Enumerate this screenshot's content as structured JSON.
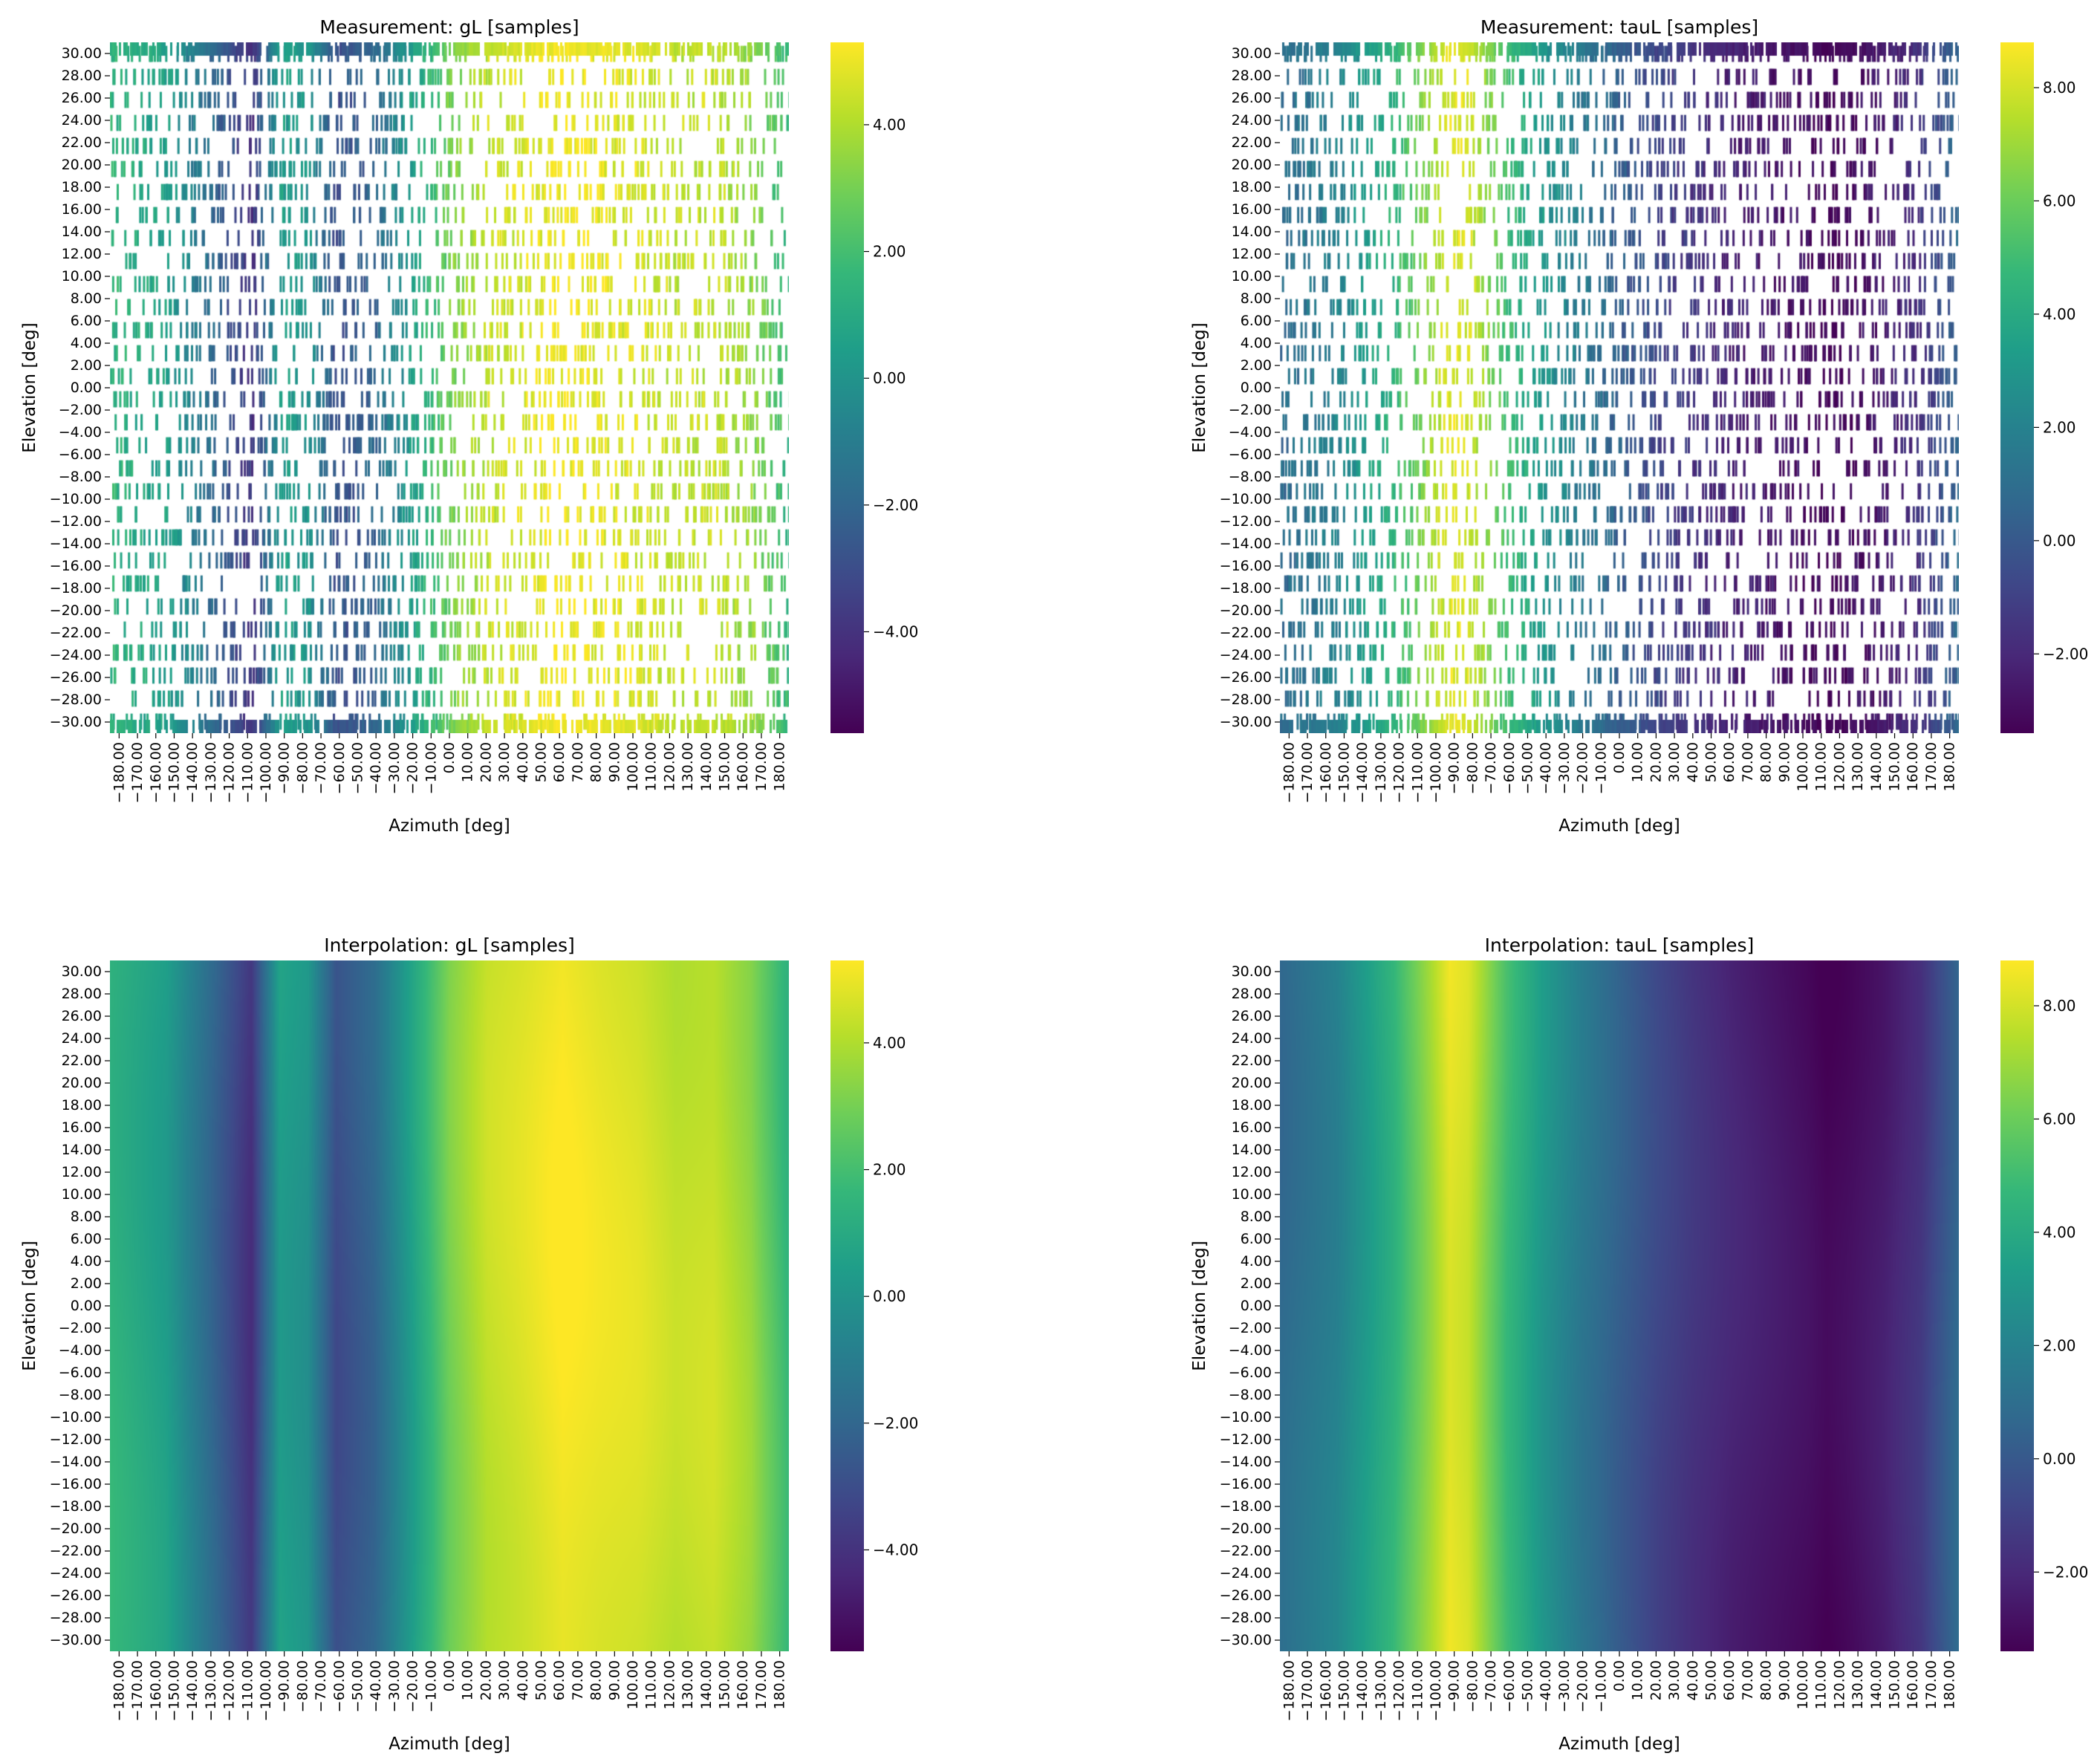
{
  "colors": {
    "colormap": "viridis",
    "viridis_stops": [
      "#440154",
      "#482878",
      "#3e4989",
      "#31688e",
      "#26828e",
      "#1f9e89",
      "#35b779",
      "#6ece58",
      "#b5de2b",
      "#fde725"
    ],
    "missing_cell": "#ffffff",
    "tick": "#000000"
  },
  "chart_data": [
    {
      "type": "heatmap",
      "title": "Measurement: gL [samples]",
      "xlabel": "Azimuth [deg]",
      "ylabel": "Elevation [deg]",
      "azimuth_range": [
        -180,
        180
      ],
      "elevation_range": [
        -30,
        30
      ],
      "xticks": [
        "−180.00",
        "−170.00",
        "−160.00",
        "−150.00",
        "−140.00",
        "−130.00",
        "−120.00",
        "−110.00",
        "−100.00",
        "−90.00",
        "−80.00",
        "−70.00",
        "−60.00",
        "−50.00",
        "−40.00",
        "−30.00",
        "−20.00",
        "−10.00",
        "0.00",
        "10.00",
        "20.00",
        "30.00",
        "40.00",
        "50.00",
        "60.00",
        "70.00",
        "80.00",
        "90.00",
        "100.00",
        "110.00",
        "120.00",
        "130.00",
        "140.00",
        "150.00",
        "160.00",
        "170.00",
        "180.00"
      ],
      "yticks": [
        "30.00",
        "28.00",
        "26.00",
        "24.00",
        "22.00",
        "20.00",
        "18.00",
        "16.00",
        "14.00",
        "12.00",
        "10.00",
        "8.00",
        "6.00",
        "4.00",
        "2.00",
        "0.00",
        "−2.00",
        "−4.00",
        "−6.00",
        "−8.00",
        "−10.00",
        "−12.00",
        "−14.00",
        "−16.00",
        "−18.00",
        "−20.00",
        "−22.00",
        "−24.00",
        "−26.00",
        "−28.00",
        "−30.00"
      ],
      "colorbar": {
        "range": [
          -5.6,
          5.3
        ],
        "ticks": [
          4,
          2,
          0,
          -2,
          -4
        ],
        "tick_labels": [
          "4.00",
          "2.00",
          "0.00",
          "−2.00",
          "−4.00"
        ]
      },
      "sparse": true,
      "value_profile": {
        "azimuth": [
          -180,
          -150,
          -120,
          -105,
          -90,
          -75,
          -60,
          -40,
          -20,
          0,
          20,
          40,
          60,
          80,
          100,
          120,
          140,
          160,
          180
        ],
        "values": [
          1.5,
          0.5,
          -2.5,
          -4.0,
          0.5,
          0.0,
          -3.0,
          -2.0,
          0.5,
          3.0,
          4.3,
          4.7,
          5.2,
          4.9,
          4.7,
          4.2,
          4.4,
          3.5,
          1.5
        ]
      }
    },
    {
      "type": "heatmap",
      "title": "Measurement: tauL [samples]",
      "xlabel": "Azimuth [deg]",
      "ylabel": "Elevation [deg]",
      "azimuth_range": [
        -180,
        180
      ],
      "elevation_range": [
        -30,
        30
      ],
      "xticks": [
        "−180.00",
        "−170.00",
        "−160.00",
        "−150.00",
        "−140.00",
        "−130.00",
        "−120.00",
        "−110.00",
        "−100.00",
        "−90.00",
        "−80.00",
        "−70.00",
        "−60.00",
        "−50.00",
        "−40.00",
        "−30.00",
        "−20.00",
        "−10.00",
        "0.00",
        "10.00",
        "20.00",
        "30.00",
        "40.00",
        "50.00",
        "60.00",
        "70.00",
        "80.00",
        "90.00",
        "100.00",
        "110.00",
        "120.00",
        "130.00",
        "140.00",
        "150.00",
        "160.00",
        "170.00",
        "180.00"
      ],
      "yticks": [
        "30.00",
        "28.00",
        "26.00",
        "24.00",
        "22.00",
        "20.00",
        "18.00",
        "16.00",
        "14.00",
        "12.00",
        "10.00",
        "8.00",
        "6.00",
        "4.00",
        "2.00",
        "0.00",
        "−2.00",
        "−4.00",
        "−6.00",
        "−8.00",
        "−10.00",
        "−12.00",
        "−14.00",
        "−16.00",
        "−18.00",
        "−20.00",
        "−22.00",
        "−24.00",
        "−26.00",
        "−28.00",
        "−30.00"
      ],
      "colorbar": {
        "range": [
          -3.4,
          8.8
        ],
        "ticks": [
          8,
          6,
          4,
          2,
          0,
          -2
        ],
        "tick_labels": [
          "8.00",
          "6.00",
          "4.00",
          "2.00",
          "0.00",
          "−2.00"
        ]
      },
      "sparse": true,
      "value_profile": {
        "azimuth": [
          -180,
          -150,
          -120,
          -100,
          -90,
          -80,
          -60,
          -40,
          -20,
          0,
          20,
          40,
          60,
          80,
          100,
          110,
          120,
          140,
          160,
          180
        ],
        "values": [
          0.8,
          2.0,
          4.5,
          7.0,
          8.4,
          8.0,
          5.0,
          3.0,
          1.5,
          0.3,
          -0.8,
          -1.6,
          -2.2,
          -2.6,
          -3.0,
          -3.3,
          -3.1,
          -2.5,
          -1.5,
          0.8
        ]
      }
    },
    {
      "type": "heatmap",
      "title": "Interpolation: gL [samples]",
      "xlabel": "Azimuth [deg]",
      "ylabel": "Elevation [deg]",
      "azimuth_range": [
        -180,
        180
      ],
      "elevation_range": [
        -30,
        30
      ],
      "xticks": [
        "−180.00",
        "−170.00",
        "−160.00",
        "−150.00",
        "−140.00",
        "−130.00",
        "−120.00",
        "−110.00",
        "−100.00",
        "−90.00",
        "−80.00",
        "−70.00",
        "−60.00",
        "−50.00",
        "−40.00",
        "−30.00",
        "−20.00",
        "−10.00",
        "0.00",
        "10.00",
        "20.00",
        "30.00",
        "40.00",
        "50.00",
        "60.00",
        "70.00",
        "80.00",
        "90.00",
        "100.00",
        "110.00",
        "120.00",
        "130.00",
        "140.00",
        "150.00",
        "160.00",
        "170.00",
        "180.00"
      ],
      "yticks": [
        "30.00",
        "28.00",
        "26.00",
        "24.00",
        "22.00",
        "20.00",
        "18.00",
        "16.00",
        "14.00",
        "12.00",
        "10.00",
        "8.00",
        "6.00",
        "4.00",
        "2.00",
        "0.00",
        "−2.00",
        "−4.00",
        "−6.00",
        "−8.00",
        "−10.00",
        "−12.00",
        "−14.00",
        "−16.00",
        "−18.00",
        "−20.00",
        "−22.00",
        "−24.00",
        "−26.00",
        "−28.00",
        "−30.00"
      ],
      "colorbar": {
        "range": [
          -5.6,
          5.3
        ],
        "ticks": [
          4,
          2,
          0,
          -2,
          -4
        ],
        "tick_labels": [
          "4.00",
          "2.00",
          "0.00",
          "−2.00",
          "−4.00"
        ]
      },
      "sparse": false,
      "value_profile": {
        "azimuth": [
          -180,
          -150,
          -120,
          -105,
          -90,
          -75,
          -60,
          -40,
          -20,
          0,
          20,
          40,
          60,
          80,
          100,
          120,
          140,
          160,
          180
        ],
        "values": [
          1.5,
          0.5,
          -2.5,
          -4.0,
          0.5,
          0.0,
          -3.0,
          -2.0,
          0.5,
          3.0,
          4.3,
          4.7,
          5.2,
          4.9,
          4.7,
          4.2,
          4.4,
          3.5,
          1.5
        ]
      }
    },
    {
      "type": "heatmap",
      "title": "Interpolation: tauL [samples]",
      "xlabel": "Azimuth [deg]",
      "ylabel": "Elevation [deg]",
      "azimuth_range": [
        -180,
        180
      ],
      "elevation_range": [
        -30,
        30
      ],
      "xticks": [
        "−180.00",
        "−170.00",
        "−160.00",
        "−150.00",
        "−140.00",
        "−130.00",
        "−120.00",
        "−110.00",
        "−100.00",
        "−90.00",
        "−80.00",
        "−70.00",
        "−60.00",
        "−50.00",
        "−40.00",
        "−30.00",
        "−20.00",
        "−10.00",
        "0.00",
        "10.00",
        "20.00",
        "30.00",
        "40.00",
        "50.00",
        "60.00",
        "70.00",
        "80.00",
        "90.00",
        "100.00",
        "110.00",
        "120.00",
        "130.00",
        "140.00",
        "150.00",
        "160.00",
        "170.00",
        "180.00"
      ],
      "yticks": [
        "30.00",
        "28.00",
        "26.00",
        "24.00",
        "22.00",
        "20.00",
        "18.00",
        "16.00",
        "14.00",
        "12.00",
        "10.00",
        "8.00",
        "6.00",
        "4.00",
        "2.00",
        "0.00",
        "−2.00",
        "−4.00",
        "−6.00",
        "−8.00",
        "−10.00",
        "−12.00",
        "−14.00",
        "−16.00",
        "−18.00",
        "−20.00",
        "−22.00",
        "−24.00",
        "−26.00",
        "−28.00",
        "−30.00"
      ],
      "colorbar": {
        "range": [
          -3.4,
          8.8
        ],
        "ticks": [
          8,
          6,
          4,
          2,
          0,
          -2
        ],
        "tick_labels": [
          "8.00",
          "6.00",
          "4.00",
          "2.00",
          "0.00",
          "−2.00"
        ]
      },
      "sparse": false,
      "value_profile": {
        "azimuth": [
          -180,
          -150,
          -120,
          -100,
          -90,
          -80,
          -60,
          -40,
          -20,
          0,
          20,
          40,
          60,
          80,
          100,
          110,
          120,
          140,
          160,
          180
        ],
        "values": [
          0.8,
          2.0,
          4.5,
          7.0,
          8.4,
          8.0,
          5.0,
          3.0,
          1.5,
          0.3,
          -0.8,
          -1.6,
          -2.2,
          -2.6,
          -3.0,
          -3.3,
          -3.1,
          -2.5,
          -1.5,
          0.8
        ]
      }
    }
  ]
}
